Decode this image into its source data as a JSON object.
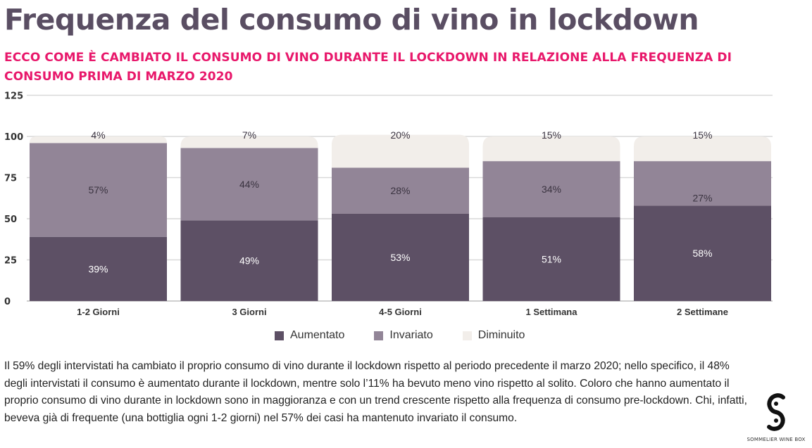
{
  "header": {
    "title": "Frequenza del consumo di vino in lockdown",
    "subtitle": "ECCO COME È CAMBIATO IL CONSUMO DI VINO DURANTE IL LOCKDOWN IN RELAZIONE ALLA FREQUENZA DI CONSUMO PRIMA DI MARZO 2020"
  },
  "colors": {
    "title": "#5a4e63",
    "subtitle": "#e8186b",
    "aumentato": "#5d5065",
    "invariato": "#928597",
    "diminuito": "#f2eeea",
    "grid": "#d9d9d9"
  },
  "chart_data": {
    "type": "bar",
    "stacked": true,
    "title": "Frequenza del consumo di vino in lockdown",
    "xlabel": "",
    "ylabel": "",
    "ylim": [
      0,
      125
    ],
    "yticks": [
      0,
      25,
      50,
      75,
      100,
      125
    ],
    "grid": true,
    "legend_position": "bottom-center",
    "categories": [
      "1-2 Giorni",
      "3 Giorni",
      "4-5 Giorni",
      "1 Settimana",
      "2 Settimane"
    ],
    "series": [
      {
        "name": "Aumentato",
        "color": "#5d5065",
        "label_color": "#ffffff",
        "values": [
          39,
          49,
          53,
          51,
          58
        ],
        "labels": [
          "39%",
          "49%",
          "53%",
          "51%",
          "58%"
        ]
      },
      {
        "name": "Invariato",
        "color": "#928597",
        "label_color": "#3a3340",
        "values": [
          57,
          44,
          28,
          34,
          27
        ],
        "labels": [
          "57%",
          "44%",
          "28%",
          "34%",
          "27%"
        ]
      },
      {
        "name": "Diminuito",
        "color": "#f2eeea",
        "label_color": "#3a3340",
        "values": [
          4,
          7,
          20,
          15,
          15
        ],
        "labels": [
          "4%",
          "7%",
          "20%",
          "15%",
          "15%"
        ]
      }
    ]
  },
  "legend": [
    {
      "label": "Aumentato",
      "color": "#5d5065"
    },
    {
      "label": "Invariato",
      "color": "#928597"
    },
    {
      "label": "Diminuito",
      "color": "#f2eeea"
    }
  ],
  "body": {
    "paragraph": "Il 59% degli intervistati ha cambiato il proprio consumo di vino durante il lockdown rispetto al periodo precedente il marzo 2020; nello specifico, il 48% degli intervistati il consumo è aumentato durante il lockdown, mentre solo l’11% ha bevuto meno vino rispetto al solito. Coloro che hanno aumentato il proprio consumo di vino durante in lockdown sono in maggioranza e con un trend crescente rispetto alla frequenza di consumo pre-lockdown. Chi, infatti, beveva già di frequente (una bottiglia ogni 1-2 giorni) nel 57% dei casi ha mantenuto invariato il consumo."
  },
  "logo": {
    "text": "SOMMELIER WINE BOX"
  }
}
